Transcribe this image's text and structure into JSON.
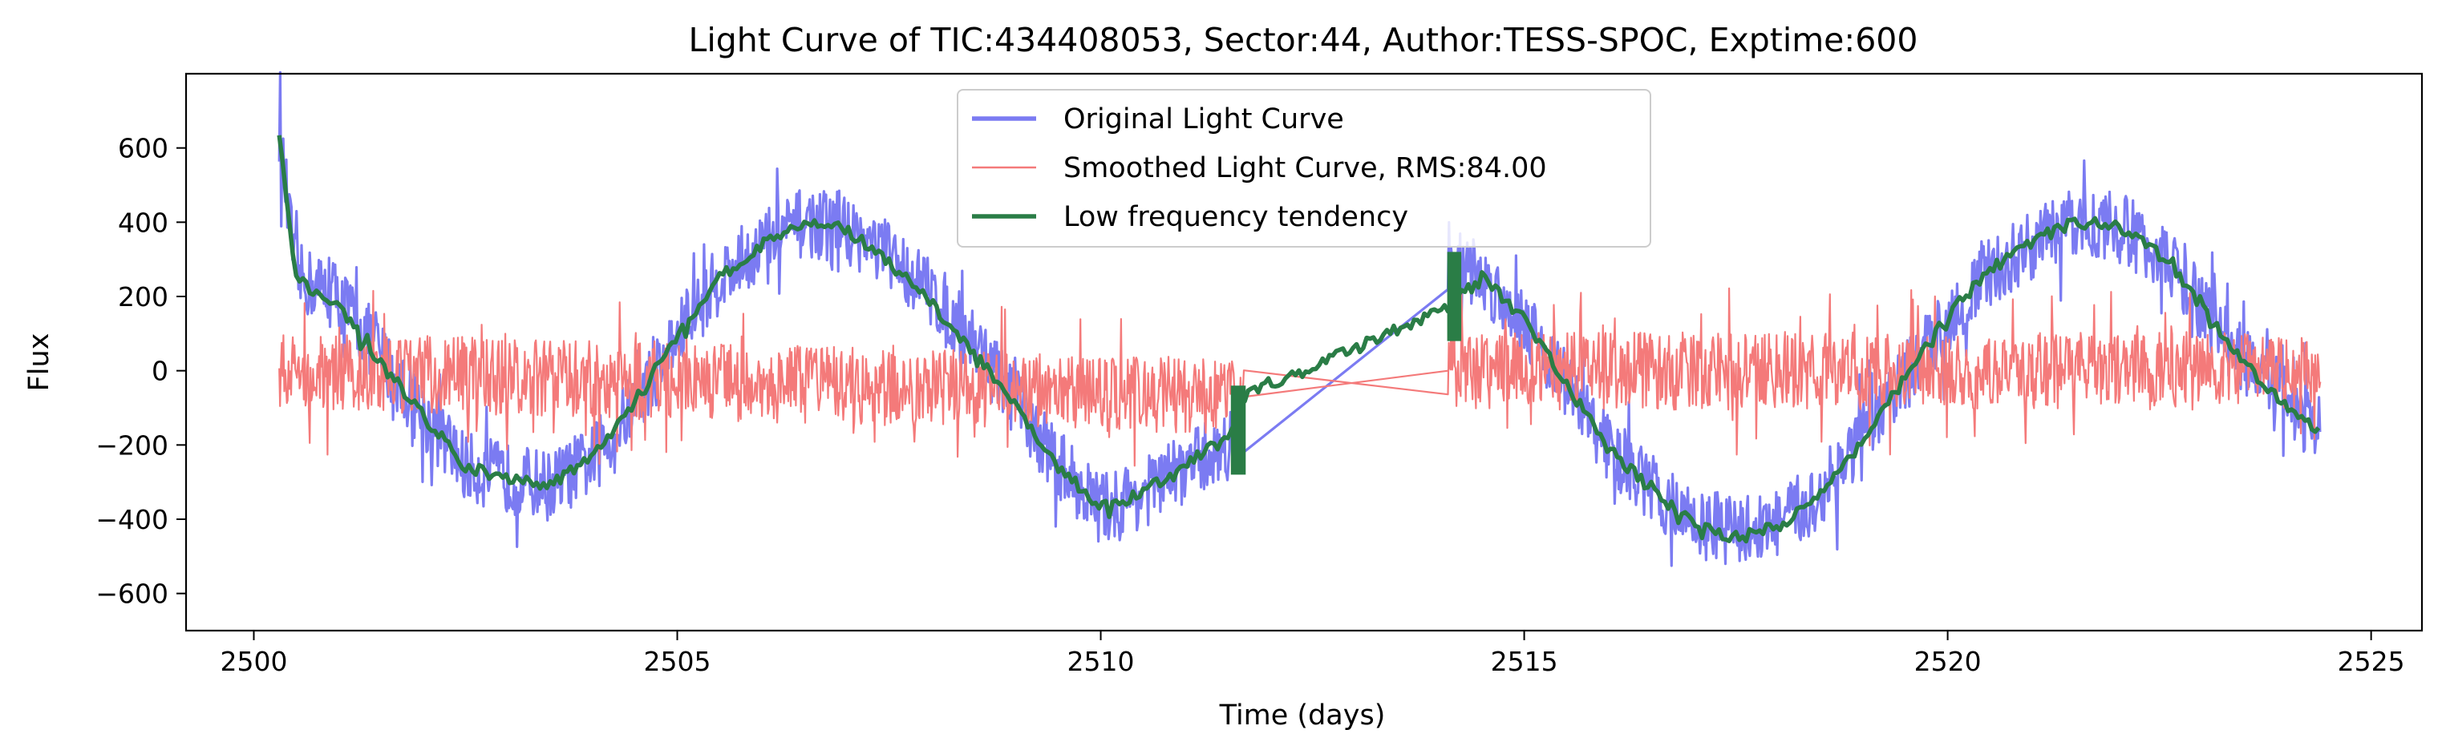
{
  "chart_data": {
    "type": "line",
    "title": "Light Curve of TIC:434408053, Sector:44, Author:TESS-SPOC, Exptime:600",
    "xlabel": "Time (days)",
    "ylabel": "Flux",
    "xlim": [
      2499.2,
      2525.6
    ],
    "ylim": [
      -700,
      800
    ],
    "xticks": [
      2500,
      2505,
      2510,
      2515,
      2520,
      2525
    ],
    "xtick_labels": [
      "2500",
      "2505",
      "2510",
      "2515",
      "2520",
      "2525"
    ],
    "yticks": [
      -600,
      -400,
      -200,
      0,
      200,
      400,
      600
    ],
    "ytick_labels": [
      "−600",
      "−400",
      "−200",
      "0",
      "200",
      "400",
      "600"
    ],
    "grid": false,
    "legend_position": "top-center",
    "gap": [
      2511.7,
      2514.1
    ],
    "series": [
      {
        "name": "Original Light Curve",
        "color": "#7b7bf2",
        "x": [
          2500.3,
          2500.5,
          2501.0,
          2501.5,
          2502.0,
          2502.5,
          2503.0,
          2503.5,
          2504.0,
          2504.5,
          2505.0,
          2505.5,
          2506.0,
          2506.5,
          2507.0,
          2507.5,
          2508.0,
          2508.5,
          2509.0,
          2509.5,
          2510.0,
          2510.5,
          2511.0,
          2511.5,
          2511.7,
          2514.1,
          2514.5,
          2515.0,
          2515.5,
          2516.0,
          2516.5,
          2517.0,
          2517.5,
          2518.0,
          2518.5,
          2519.0,
          2519.5,
          2520.0,
          2520.5,
          2521.0,
          2521.5,
          2522.0,
          2522.5,
          2523.0,
          2523.5,
          2524.0,
          2524.4
        ],
        "values": [
          640,
          250,
          200,
          40,
          -120,
          -260,
          -290,
          -310,
          -240,
          -90,
          90,
          250,
          340,
          400,
          380,
          310,
          210,
          80,
          -90,
          -250,
          -370,
          -330,
          -260,
          -200,
          -170,
          310,
          250,
          140,
          -40,
          -210,
          -320,
          -410,
          -430,
          -410,
          -340,
          -180,
          -20,
          140,
          260,
          340,
          400,
          390,
          320,
          170,
          30,
          -80,
          -170
        ]
      },
      {
        "name": "Smoothed Light Curve, RMS:84.00",
        "color": "#f47a7a",
        "x": [
          2500.3,
          2511.7,
          2514.1,
          2524.4
        ],
        "values": [
          0,
          -70,
          0,
          0
        ],
        "rms": 84.0
      },
      {
        "name": "Low frequency tendency",
        "color": "#2a7d46",
        "x": [
          2500.3,
          2500.5,
          2501.0,
          2501.5,
          2502.0,
          2502.5,
          2503.0,
          2503.5,
          2504.0,
          2504.5,
          2505.0,
          2505.5,
          2506.0,
          2506.5,
          2507.0,
          2507.5,
          2508.0,
          2508.5,
          2509.0,
          2509.5,
          2510.0,
          2510.5,
          2511.0,
          2511.5,
          2511.7,
          2514.1,
          2514.5,
          2515.0,
          2515.5,
          2516.0,
          2516.5,
          2517.0,
          2517.5,
          2518.0,
          2518.5,
          2519.0,
          2519.5,
          2520.0,
          2520.5,
          2521.0,
          2521.5,
          2522.0,
          2522.5,
          2523.0,
          2523.5,
          2524.0,
          2524.4
        ],
        "values": [
          640,
          250,
          170,
          20,
          -120,
          -260,
          -290,
          -310,
          -230,
          -80,
          90,
          250,
          340,
          400,
          380,
          290,
          180,
          50,
          -100,
          -260,
          -370,
          -330,
          -250,
          -180,
          -70,
          170,
          250,
          140,
          -40,
          -210,
          -320,
          -410,
          -450,
          -420,
          -330,
          -190,
          -20,
          150,
          270,
          350,
          400,
          390,
          320,
          170,
          20,
          -90,
          -160
        ]
      }
    ]
  }
}
